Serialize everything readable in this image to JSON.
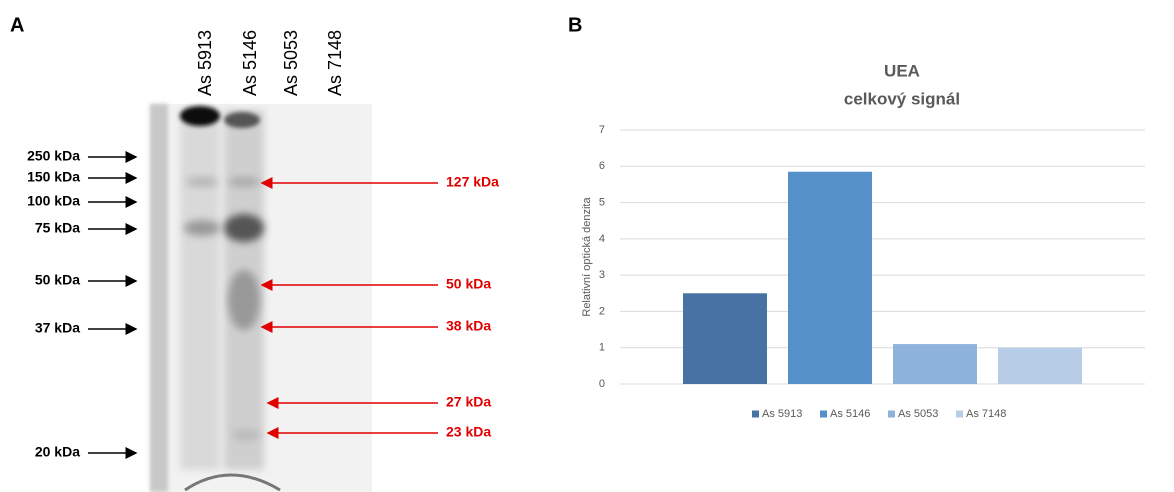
{
  "panel_a": {
    "label": "A",
    "lanes": [
      "As 5913",
      "As 5146",
      "As 5053",
      "As 7148"
    ],
    "markers": [
      "250 kDa",
      "150 kDa",
      "100 kDa",
      "75 kDa",
      "50 kDa",
      "37 kDa",
      "20 kDa"
    ],
    "bands": [
      "127 kDa",
      "50 kDa",
      "38 kDa",
      "27 kDa",
      "23 kDa"
    ]
  },
  "panel_b": {
    "label": "B"
  },
  "chart_data": {
    "type": "bar",
    "title": "UEA",
    "subtitle": "celkový signál",
    "y_label": "Relativní optická denzita",
    "categories": [
      null
    ],
    "series": [
      {
        "name": "As 5913",
        "color": "#4673a3",
        "values": [
          2.5
        ]
      },
      {
        "name": "As 5146",
        "color": "#5590c8",
        "values": [
          5.85
        ]
      },
      {
        "name": "As 5053",
        "color": "#8db2dc",
        "values": [
          1.1
        ]
      },
      {
        "name": "As 7148",
        "color": "#b7cce7",
        "values": [
          1.0
        ]
      }
    ],
    "ylim": [
      0,
      7
    ],
    "yticks": [
      0,
      1,
      2,
      3,
      4,
      5,
      6,
      7
    ],
    "grid": true,
    "legend": "bottom"
  }
}
